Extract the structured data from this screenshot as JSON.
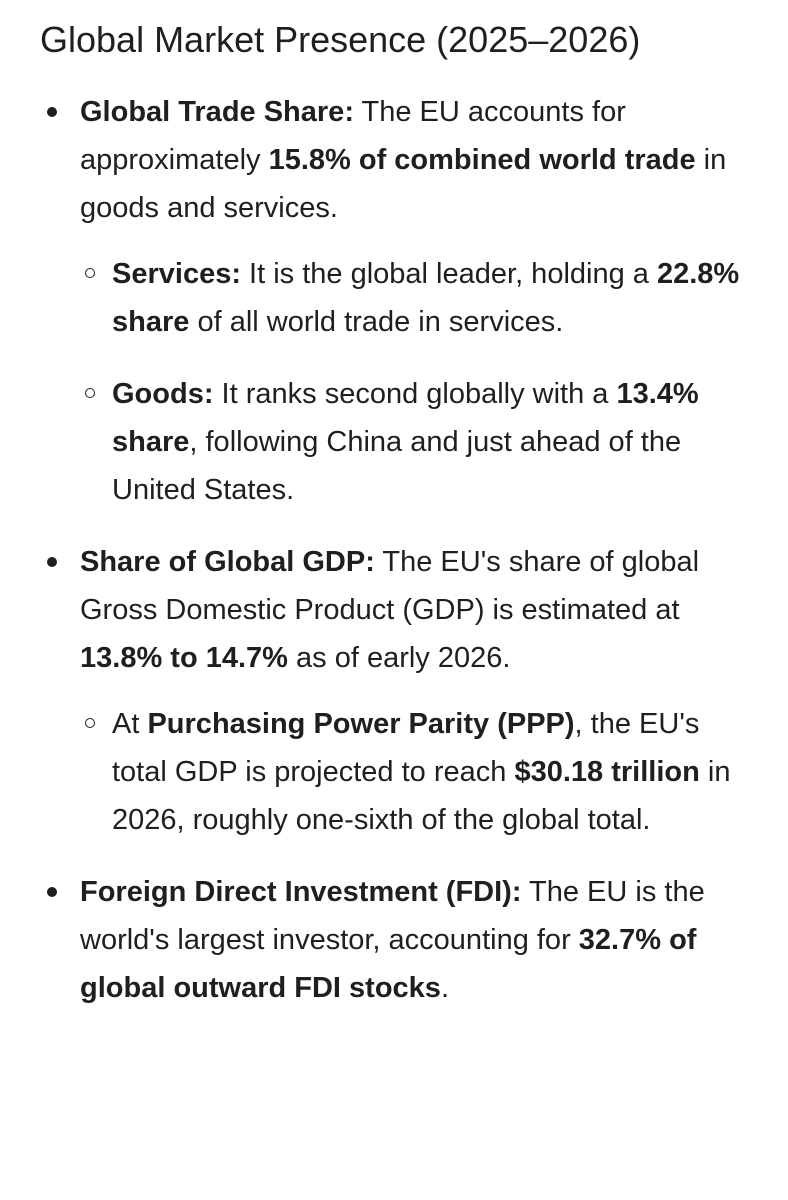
{
  "title": "Global Market Presence (2025–2026)",
  "items": [
    {
      "label": "Global Trade Share:",
      "text1": " The EU accounts for approximately ",
      "bold1": "15.8% of combined world trade",
      "text2": " in goods and services.",
      "subs": [
        {
          "label": "Services:",
          "text1": " It is the global leader, holding a ",
          "bold1": "22.8% share",
          "text2": " of all world trade in services."
        },
        {
          "label": "Goods:",
          "text1": " It ranks second globally with a ",
          "bold1": "13.4% share",
          "text2": ", following China and just ahead of the United States."
        }
      ]
    },
    {
      "label": "Share of Global GDP:",
      "text1": " The EU's share of global Gross Domestic Product (GDP) is estimated at ",
      "bold1": "13.8% to 14.7%",
      "text2": " as of early 2026.",
      "subs": [
        {
          "text0": "At ",
          "bold0": "Purchasing Power Parity (PPP)",
          "text1": ", the EU's total GDP is projected to reach ",
          "bold1": "$30.18 trillion",
          "text2": " in 2026, roughly one-sixth of the global total."
        }
      ]
    },
    {
      "label": "Foreign Direct Investment (FDI):",
      "text1": " The EU is the world's largest investor, accounting for ",
      "bold1": "32.7% of global outward FDI stocks",
      "text2": "."
    }
  ]
}
